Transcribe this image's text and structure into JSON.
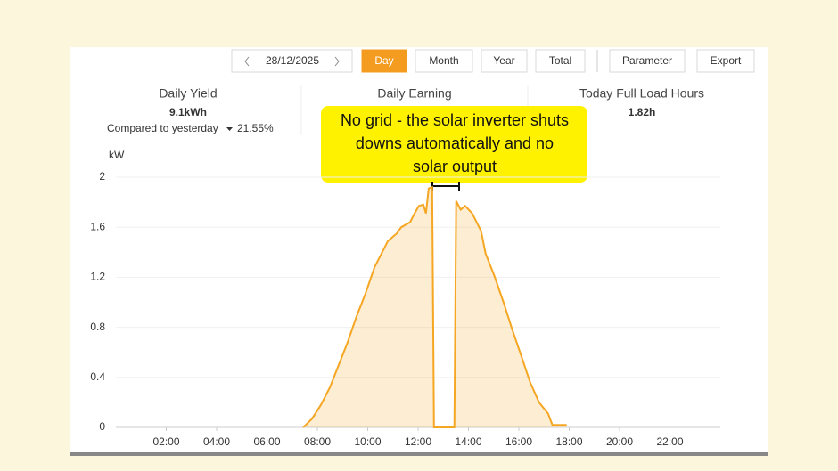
{
  "toolbar": {
    "date": "28/12/2025",
    "buttons": [
      "Day",
      "Month",
      "Year",
      "Total"
    ],
    "actions": [
      "Parameter",
      "Export"
    ],
    "active": "Day"
  },
  "stats": [
    {
      "label": "Daily Yield",
      "value": "9.1kWh"
    },
    {
      "label": "Daily Earning"
    },
    {
      "label": "Today Full Load Hours",
      "value": "1.82h"
    }
  ],
  "compare": {
    "label": "Compared to yesterday",
    "value": "21.55%"
  },
  "chart_data": {
    "type": "area",
    "y_label": "kW",
    "annotation": [
      "No grid - the solar inverter shuts",
      "downs automatically and no",
      "solar output"
    ],
    "color": "#f5a623",
    "grid": true,
    "xlim": [
      0,
      24
    ],
    "xticks": [
      {
        "value": 2,
        "label": "02:00"
      },
      {
        "value": 4,
        "label": "04:00"
      },
      {
        "value": 6,
        "label": "06:00"
      },
      {
        "value": 8,
        "label": "08:00"
      },
      {
        "value": 10,
        "label": "10:00"
      },
      {
        "value": 12,
        "label": "12:00"
      },
      {
        "value": 14,
        "label": "14:00"
      },
      {
        "value": 16,
        "label": "16:00"
      },
      {
        "value": 18,
        "label": "18:00"
      },
      {
        "value": 20,
        "label": "20:00"
      },
      {
        "value": 22,
        "label": "22:00"
      }
    ],
    "ylim": [
      0,
      2
    ],
    "yticks": [
      0,
      0.4,
      0.8,
      1.2,
      1.6,
      2
    ],
    "x": [
      7.44,
      7.79,
      8.14,
      8.5,
      8.85,
      9.2,
      9.56,
      9.91,
      10.27,
      10.55,
      10.8,
      11.15,
      11.33,
      11.68,
      11.86,
      12.03,
      12.21,
      12.31,
      12.42,
      12.56,
      12.63,
      13.44,
      13.51,
      13.69,
      13.87,
      14.15,
      14.5,
      14.68,
      15.03,
      15.39,
      15.74,
      16.1,
      16.45,
      16.8,
      17.16,
      17.33,
      17.9
    ],
    "values": [
      0,
      0.07,
      0.18,
      0.32,
      0.5,
      0.68,
      0.89,
      1.07,
      1.28,
      1.39,
      1.49,
      1.55,
      1.6,
      1.64,
      1.71,
      1.77,
      1.78,
      1.71,
      1.91,
      1.92,
      0,
      0,
      1.81,
      1.74,
      1.77,
      1.71,
      1.57,
      1.39,
      1.21,
      1,
      0.78,
      0.57,
      0.36,
      0.2,
      0.11,
      0.02,
      0.02
    ]
  }
}
